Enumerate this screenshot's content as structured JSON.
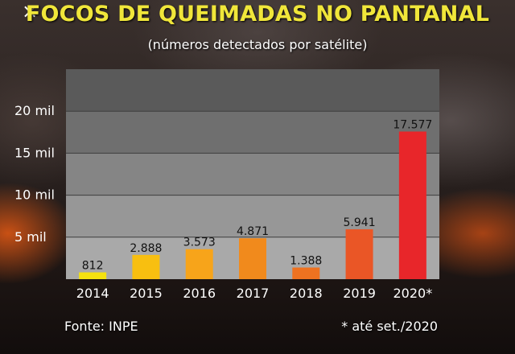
{
  "close_icon": "×",
  "chart_data": {
    "type": "bar",
    "title": "FOCOS DE QUEIMADAS NO PANTANAL",
    "subtitle": "(números detectados por satélite)",
    "categories": [
      "2014",
      "2015",
      "2016",
      "2017",
      "2018",
      "2019",
      "2020*"
    ],
    "values": [
      812,
      2888,
      3573,
      4871,
      1388,
      5941,
      17577
    ],
    "value_labels": [
      "812",
      "2.888",
      "3.573",
      "4.871",
      "1.388",
      "5.941",
      "17.577"
    ],
    "colors": [
      "#f5e20f",
      "#f8bf10",
      "#f7a41a",
      "#f18a1c",
      "#ee7220",
      "#ea5626",
      "#e8262a"
    ],
    "y_ticks": [
      {
        "value": 5000,
        "label": "5 mil"
      },
      {
        "value": 10000,
        "label": "10 mil"
      },
      {
        "value": 15000,
        "label": "15 mil"
      },
      {
        "value": 20000,
        "label": "20 mil"
      }
    ],
    "ylim": [
      0,
      25000
    ],
    "grid": true,
    "xlabel": "",
    "ylabel": "",
    "source": "Fonte: INPE",
    "note": "* até set./2020"
  }
}
